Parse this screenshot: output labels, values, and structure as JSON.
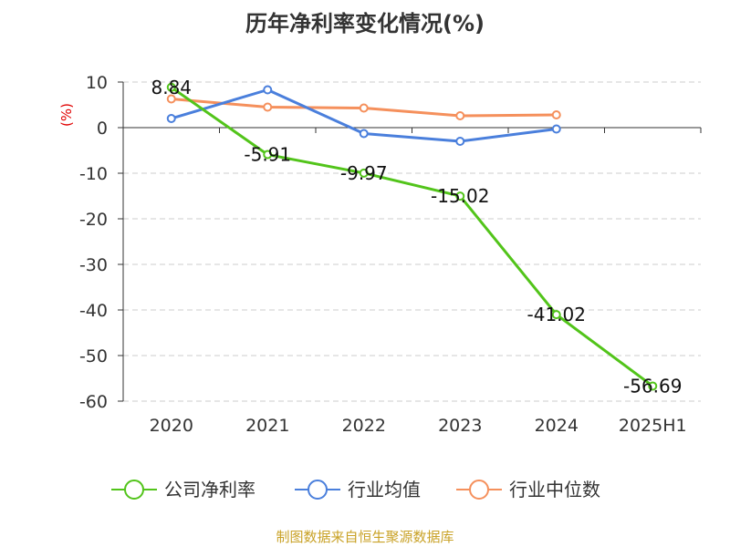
{
  "title": "历年净利率变化情况(%)",
  "unit_label": "(%)",
  "source": "制图数据来自恒生聚源数据库",
  "colors": {
    "company": "#52c41a",
    "industry_avg": "#4a7fdc",
    "industry_median": "#f5905c",
    "grid": "#cccccc",
    "axis": "#333333"
  },
  "chart_data": {
    "type": "line",
    "title": "历年净利率变化情况(%)",
    "ylabel": "(%)",
    "categories": [
      "2020",
      "2021",
      "2022",
      "2023",
      "2024",
      "2025H1"
    ],
    "ylim": [
      -60,
      10
    ],
    "yticks": [
      10,
      0,
      -10,
      -20,
      -30,
      -40,
      -50,
      -60
    ],
    "grid": true,
    "legend_position": "bottom",
    "series": [
      {
        "name": "公司净利率",
        "key": "company",
        "values": [
          8.84,
          -5.91,
          -9.97,
          -15.02,
          -41.02,
          -56.69
        ],
        "labels": [
          "8.84",
          "-5.91",
          "-9.97",
          "-15.02",
          "-41.02",
          "-56.69"
        ]
      },
      {
        "name": "行业均值",
        "key": "industry_avg",
        "values": [
          2.0,
          8.3,
          -1.3,
          -3.0,
          -0.3,
          null
        ]
      },
      {
        "name": "行业中位数",
        "key": "industry_median",
        "values": [
          6.3,
          4.5,
          4.3,
          2.6,
          2.8,
          null
        ]
      }
    ]
  }
}
